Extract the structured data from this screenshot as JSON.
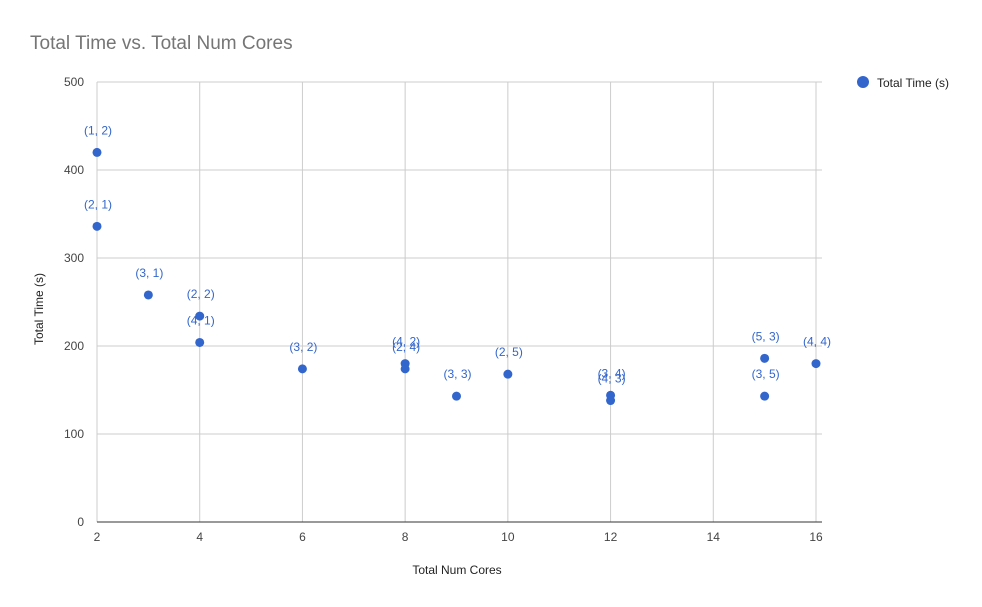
{
  "chart_data": {
    "type": "scatter",
    "title": "Total Time vs. Total Num Cores",
    "xlabel": "Total Num Cores",
    "ylabel": "Total Time (s)",
    "xlim": [
      2,
      16
    ],
    "ylim": [
      0,
      500
    ],
    "x_ticks": [
      2,
      4,
      6,
      8,
      10,
      12,
      14,
      16
    ],
    "y_ticks": [
      0,
      100,
      200,
      300,
      400,
      500
    ],
    "grid": true,
    "legend_position": "right",
    "series": [
      {
        "name": "Total Time (s)",
        "color": "#3366cc",
        "points": [
          {
            "x": 2,
            "y": 420,
            "label": "(1, 2)"
          },
          {
            "x": 2,
            "y": 336,
            "label": "(2, 1)"
          },
          {
            "x": 3,
            "y": 258,
            "label": "(3, 1)"
          },
          {
            "x": 4,
            "y": 234,
            "label": "(2, 2)"
          },
          {
            "x": 4,
            "y": 204,
            "label": "(4, 1)"
          },
          {
            "x": 6,
            "y": 174,
            "label": "(3, 2)"
          },
          {
            "x": 8,
            "y": 180,
            "label": "(4, 2)"
          },
          {
            "x": 8,
            "y": 174,
            "label": "(2, 4)"
          },
          {
            "x": 9,
            "y": 143,
            "label": "(3, 3)"
          },
          {
            "x": 10,
            "y": 168,
            "label": "(2, 5)"
          },
          {
            "x": 12,
            "y": 144,
            "label": "(3, 4)"
          },
          {
            "x": 12,
            "y": 138,
            "label": "(4, 3)"
          },
          {
            "x": 15,
            "y": 186,
            "label": "(5, 3)"
          },
          {
            "x": 15,
            "y": 143,
            "label": "(3, 5)"
          },
          {
            "x": 16,
            "y": 180,
            "label": "(4, 4)"
          }
        ]
      }
    ]
  }
}
